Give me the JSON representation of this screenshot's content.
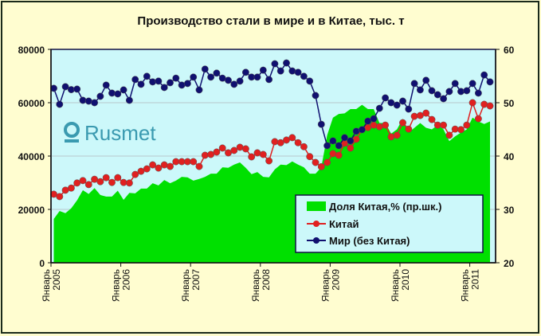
{
  "chart_data": {
    "type": "line",
    "title": "Производство стали в мире и в Китае, тыс. т",
    "watermark": "Rusmet",
    "x_start": "2005-01",
    "x_end": "2011-04",
    "x_tick_labels": [
      {
        "month": "Январь",
        "year": "2005"
      },
      {
        "month": "Январь",
        "year": "2006"
      },
      {
        "month": "Январь",
        "year": "2007"
      },
      {
        "month": "Январь",
        "year": "2008"
      },
      {
        "month": "Январь",
        "year": "2009"
      },
      {
        "month": "Январь",
        "year": "2010"
      },
      {
        "month": "Январь",
        "year": "2011"
      }
    ],
    "y_left": {
      "min": 0,
      "max": 80000,
      "ticks": [
        "0",
        "20000",
        "40000",
        "60000",
        "80000"
      ]
    },
    "y_right": {
      "min": 20,
      "max": 60,
      "ticks": [
        "20",
        "30",
        "40",
        "50",
        "60"
      ]
    },
    "grid": true,
    "legend_position": "bottom-right",
    "series": [
      {
        "name": "Доля Китая,% (пр.шк.)",
        "type": "area",
        "axis": "right",
        "color": "#00e000",
        "values": [
          28.2,
          29.7,
          29.3,
          30.2,
          31.7,
          33.6,
          32.9,
          34,
          32.7,
          32.4,
          32.4,
          33.5,
          31.8,
          33.1,
          33,
          33.9,
          33.9,
          34.9,
          34.5,
          35.5,
          34.9,
          35.4,
          36.1,
          36,
          35.4,
          35.7,
          36.1,
          36.7,
          36.7,
          37.9,
          37.8,
          38.4,
          38.8,
          37.8,
          36.6,
          37,
          36.1,
          36,
          37.5,
          38.4,
          38.3,
          39,
          38.4,
          37.9,
          36.7,
          36.7,
          37.9,
          43.9,
          47.2,
          47.9,
          48,
          48.8,
          48.8,
          49.6,
          48.8,
          48.8,
          46.2,
          46.2,
          44.2,
          45,
          47,
          44.4,
          45.3,
          46.2,
          45.3,
          45,
          45.8,
          45,
          42.8,
          43.7,
          44.4,
          45,
          47.2,
          46.5,
          46,
          46.5
        ]
      },
      {
        "name": "Китай",
        "type": "line",
        "axis": "left",
        "color": "#e02020",
        "values": [
          25700,
          24800,
          27200,
          28000,
          29900,
          30800,
          29300,
          31300,
          30400,
          31900,
          30100,
          31900,
          30100,
          29900,
          33100,
          34300,
          35200,
          36700,
          35500,
          36700,
          36100,
          37900,
          37900,
          37900,
          37900,
          36100,
          40300,
          40600,
          41500,
          43000,
          41200,
          42100,
          43300,
          42700,
          39700,
          41200,
          40600,
          38200,
          45400,
          45000,
          46000,
          46900,
          45000,
          43500,
          39800,
          37600,
          36000,
          37600,
          40900,
          40300,
          44800,
          43000,
          46300,
          49900,
          50700,
          51600,
          51000,
          51600,
          47200,
          47800,
          52500,
          50100,
          54900,
          55200,
          56100,
          53700,
          51600,
          51600,
          47800,
          50100,
          49900,
          51600,
          60000,
          54000,
          59400,
          58800
        ]
      },
      {
        "name": "Мир (без Китая)",
        "type": "line",
        "axis": "left",
        "color": "#101070",
        "values": [
          65400,
          59400,
          66000,
          64900,
          65100,
          60900,
          60600,
          60000,
          62400,
          66600,
          63600,
          63300,
          64800,
          60900,
          68700,
          66900,
          69900,
          67800,
          68100,
          65700,
          67500,
          69200,
          66600,
          67200,
          69600,
          64800,
          72600,
          69600,
          71100,
          69200,
          68400,
          66900,
          68100,
          71400,
          69600,
          69600,
          72200,
          68700,
          74600,
          71900,
          74900,
          71900,
          71400,
          69900,
          68100,
          62700,
          51900,
          43900,
          45700,
          43900,
          46900,
          45700,
          49300,
          49900,
          53100,
          54000,
          57900,
          61800,
          60000,
          59100,
          60600,
          57600,
          67200,
          64800,
          68400,
          64500,
          63000,
          61500,
          64200,
          67200,
          64200,
          64500,
          67200,
          63600,
          70400,
          67800
        ]
      }
    ]
  }
}
